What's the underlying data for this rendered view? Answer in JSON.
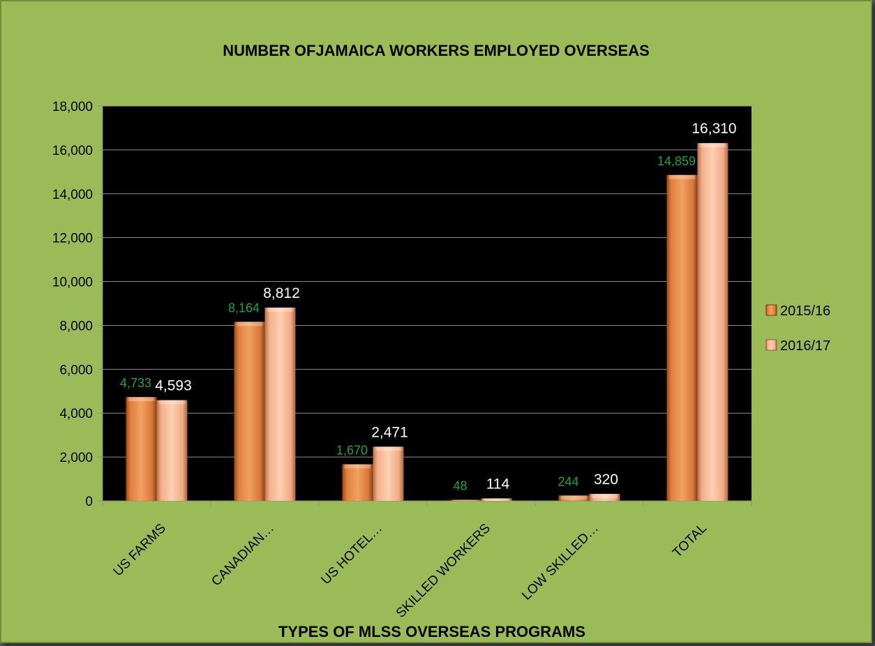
{
  "chart_data": {
    "type": "bar",
    "title": "NUMBER OFJAMAICA WORKERS EMPLOYED  OVERSEAS",
    "xlabel": "TYPES OF MLSS OVERSEAS PROGRAMS",
    "ylabel": "",
    "categories": [
      "US FARMS",
      "CANADIAN…",
      "US HOTEL…",
      "SKILLED WORKERS",
      "LOW SKILLED…",
      "TOTAL"
    ],
    "series": [
      {
        "name": "2015/16",
        "values": [
          4733,
          8164,
          1670,
          48,
          244,
          14859
        ],
        "labels": [
          "4,733",
          "8,164",
          "1,670",
          "48",
          "244",
          "14,859"
        ],
        "label_color": "#1fa33a",
        "color": "#e8894a"
      },
      {
        "name": "2016/17",
        "values": [
          4593,
          8812,
          2471,
          114,
          320,
          16310
        ],
        "labels": [
          "4,593",
          "8,812",
          "2,471",
          "114",
          "320",
          "16,310"
        ],
        "label_color": "#ffffff",
        "color": "#f7b894"
      }
    ],
    "ylim": [
      0,
      18000
    ],
    "yticks": [
      "0",
      "2,000",
      "4,000",
      "6,000",
      "8,000",
      "10,000",
      "12,000",
      "14,000",
      "16,000",
      "18,000"
    ],
    "grid": true,
    "legend_position": "right",
    "plot_background": "#000000",
    "chart_background": "#9bbb59"
  }
}
